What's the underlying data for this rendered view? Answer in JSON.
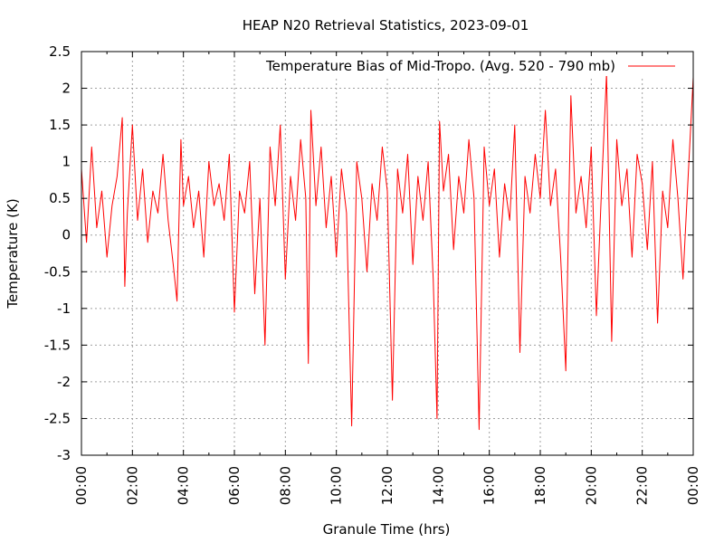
{
  "chart_data": {
    "type": "line",
    "title": "HEAP N20 Retrieval Statistics, 2023-09-01",
    "xlabel": "Granule Time (hrs)",
    "ylabel": "Temperature (K)",
    "xlim": [
      0,
      24
    ],
    "ylim": [
      -3,
      2.5
    ],
    "x_ticks": [
      0,
      2,
      4,
      6,
      8,
      10,
      12,
      14,
      16,
      18,
      20,
      22,
      24
    ],
    "x_tick_labels": [
      "00:00",
      "02:00",
      "04:00",
      "06:00",
      "08:00",
      "10:00",
      "12:00",
      "14:00",
      "16:00",
      "18:00",
      "20:00",
      "22:00",
      "00:00"
    ],
    "y_ticks": [
      -3,
      -2.5,
      -2,
      -1.5,
      -1,
      -0.5,
      0,
      0.5,
      1,
      1.5,
      2,
      2.5
    ],
    "y_tick_labels": [
      "-3",
      "-2.5",
      "-2",
      "-1.5",
      "-1",
      "-0.5",
      "0",
      "0.5",
      "1",
      "1.5",
      "2",
      "2.5"
    ],
    "grid": true,
    "legend_position": "top-right",
    "series": [
      {
        "name": "Temperature Bias of Mid-Tropo. (Avg. 520 - 790 mb)",
        "color": "#ff0000",
        "x": [
          0.0,
          0.2,
          0.4,
          0.6,
          0.8,
          1.0,
          1.2,
          1.4,
          1.6,
          1.7,
          1.8,
          2.0,
          2.2,
          2.4,
          2.6,
          2.8,
          3.0,
          3.2,
          3.4,
          3.6,
          3.75,
          3.9,
          4.0,
          4.2,
          4.4,
          4.6,
          4.8,
          5.0,
          5.2,
          5.4,
          5.6,
          5.8,
          6.0,
          6.2,
          6.4,
          6.6,
          6.8,
          7.0,
          7.2,
          7.4,
          7.6,
          7.8,
          8.0,
          8.2,
          8.4,
          8.6,
          8.8,
          8.9,
          9.0,
          9.2,
          9.4,
          9.6,
          9.8,
          10.0,
          10.2,
          10.4,
          10.6,
          10.8,
          11.0,
          11.2,
          11.4,
          11.6,
          11.8,
          12.0,
          12.2,
          12.4,
          12.6,
          12.8,
          13.0,
          13.2,
          13.4,
          13.6,
          13.8,
          13.95,
          14.05,
          14.2,
          14.4,
          14.6,
          14.8,
          15.0,
          15.2,
          15.4,
          15.6,
          15.8,
          16.0,
          16.2,
          16.4,
          16.6,
          16.8,
          17.0,
          17.2,
          17.4,
          17.6,
          17.8,
          18.0,
          18.2,
          18.4,
          18.6,
          18.8,
          19.0,
          19.2,
          19.4,
          19.6,
          19.8,
          20.0,
          20.2,
          20.4,
          20.6,
          20.8,
          21.0,
          21.2,
          21.4,
          21.6,
          21.8,
          22.0,
          22.2,
          22.4,
          22.6,
          22.8,
          23.0,
          23.2,
          23.4,
          23.6,
          23.8,
          24.0
        ],
        "y": [
          0.9,
          -0.1,
          1.2,
          0.1,
          0.6,
          -0.3,
          0.4,
          0.8,
          1.6,
          -0.7,
          0.3,
          1.5,
          0.2,
          0.9,
          -0.1,
          0.6,
          0.3,
          1.1,
          0.2,
          -0.4,
          -0.9,
          1.3,
          0.4,
          0.8,
          0.1,
          0.6,
          -0.3,
          1.0,
          0.4,
          0.7,
          0.2,
          1.1,
          -1.05,
          0.6,
          0.3,
          1.0,
          -0.8,
          0.5,
          -1.5,
          1.2,
          0.4,
          1.5,
          -0.6,
          0.8,
          0.2,
          1.3,
          0.5,
          -1.75,
          1.7,
          0.4,
          1.2,
          0.1,
          0.8,
          -0.3,
          0.9,
          0.3,
          -2.6,
          1.0,
          0.5,
          -0.5,
          0.7,
          0.2,
          1.2,
          0.6,
          -2.25,
          0.9,
          0.3,
          1.1,
          -0.4,
          0.8,
          0.2,
          1.0,
          -0.6,
          -2.5,
          1.55,
          0.6,
          1.1,
          -0.2,
          0.8,
          0.3,
          1.3,
          0.5,
          -2.65,
          1.2,
          0.4,
          0.9,
          -0.3,
          0.7,
          0.2,
          1.5,
          -1.6,
          0.8,
          0.3,
          1.1,
          0.5,
          1.7,
          0.4,
          0.9,
          -0.3,
          -1.85,
          1.9,
          0.3,
          0.8,
          0.1,
          1.2,
          -1.1,
          0.6,
          2.2,
          -1.45,
          1.3,
          0.4,
          0.9,
          -0.3,
          1.1,
          0.7,
          -0.2,
          1.0,
          -1.2,
          0.6,
          0.1,
          1.3,
          0.5,
          -0.6,
          0.8,
          2.15
        ]
      }
    ]
  }
}
